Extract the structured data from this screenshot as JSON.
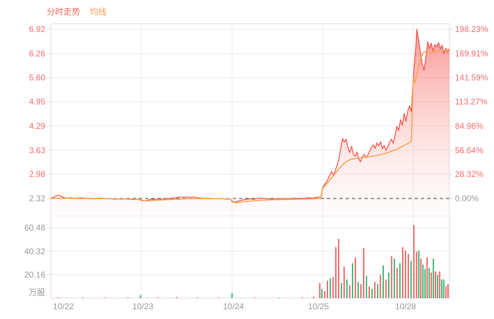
{
  "legend": {
    "items": [
      {
        "label": "分时走势",
        "color": "#f5695c"
      },
      {
        "label": "均线",
        "color": "#fb9c52"
      }
    ]
  },
  "chart_data": {
    "type": "line",
    "title": "分时走势图 (intraday multi-day stock chart)",
    "panels": [
      "price",
      "volume"
    ],
    "x_axis": {
      "labels": [
        "10/22",
        "10/23",
        "10/24",
        "10/25",
        "10/28"
      ],
      "days_visible": 4.4
    },
    "price_axis": {
      "ticks": [
        6.92,
        6.26,
        5.6,
        4.95,
        4.29,
        3.63,
        2.98
      ],
      "baseline": 2.32,
      "baseline_label": "2.32",
      "label_color": "#f56c6c",
      "muted_color": "#999999"
    },
    "pct_axis": {
      "ticks": [
        "198.23%",
        "169.91%",
        "141.59%",
        "113.27%",
        "84.96%",
        "56.64%",
        "28.32%"
      ],
      "baseline_label": "0.00%",
      "label_color": "#f56c6c",
      "muted_color": "#999999"
    },
    "volume_axis": {
      "ticks": [
        60.48,
        40.32,
        20.16
      ],
      "unit": "万股",
      "label_color": "#999999"
    },
    "grid_color": "#ececec",
    "frame_color": "#dcdcdc",
    "baseline_dash_color": "#3c3c3c",
    "area_gradient": [
      "rgba(245,75,70,0.60)",
      "rgba(248,135,128,0.33)",
      "rgba(252,228,226,0.12)"
    ],
    "series": [
      {
        "name": "分时走势",
        "color": "#f6544e",
        "width": 1.3,
        "points": [
          [
            0.0,
            2.33
          ],
          [
            0.03,
            2.35
          ],
          [
            0.06,
            2.39
          ],
          [
            0.09,
            2.41
          ],
          [
            0.12,
            2.37
          ],
          [
            0.15,
            2.34
          ],
          [
            0.18,
            2.33
          ],
          [
            0.22,
            2.34
          ],
          [
            0.26,
            2.32
          ],
          [
            0.3,
            2.33
          ],
          [
            0.34,
            2.34
          ],
          [
            0.38,
            2.32
          ],
          [
            0.42,
            2.33
          ],
          [
            0.46,
            2.31
          ],
          [
            0.5,
            2.32
          ],
          [
            0.54,
            2.33
          ],
          [
            0.58,
            2.32
          ],
          [
            0.62,
            2.31
          ],
          [
            0.66,
            2.32
          ],
          [
            0.7,
            2.3
          ],
          [
            0.74,
            2.31
          ],
          [
            0.78,
            2.3
          ],
          [
            0.82,
            2.31
          ],
          [
            0.86,
            2.3
          ],
          [
            0.9,
            2.29
          ],
          [
            0.94,
            2.3
          ],
          [
            0.98,
            2.29
          ],
          [
            1.0,
            2.28
          ],
          [
            1.03,
            2.25
          ],
          [
            1.06,
            2.27
          ],
          [
            1.09,
            2.29
          ],
          [
            1.12,
            2.3
          ],
          [
            1.15,
            2.29
          ],
          [
            1.18,
            2.31
          ],
          [
            1.22,
            2.3
          ],
          [
            1.26,
            2.31
          ],
          [
            1.3,
            2.32
          ],
          [
            1.34,
            2.33
          ],
          [
            1.38,
            2.34
          ],
          [
            1.42,
            2.36
          ],
          [
            1.46,
            2.35
          ],
          [
            1.5,
            2.36
          ],
          [
            1.54,
            2.35
          ],
          [
            1.58,
            2.36
          ],
          [
            1.62,
            2.34
          ],
          [
            1.66,
            2.33
          ],
          [
            1.7,
            2.32
          ],
          [
            1.74,
            2.33
          ],
          [
            1.78,
            2.31
          ],
          [
            1.82,
            2.32
          ],
          [
            1.86,
            2.31
          ],
          [
            1.9,
            2.32
          ],
          [
            1.94,
            2.3
          ],
          [
            1.98,
            2.31
          ],
          [
            2.0,
            2.26
          ],
          [
            2.02,
            2.22
          ],
          [
            2.05,
            2.24
          ],
          [
            2.08,
            2.26
          ],
          [
            2.12,
            2.28
          ],
          [
            2.16,
            2.3
          ],
          [
            2.2,
            2.31
          ],
          [
            2.24,
            2.3
          ],
          [
            2.28,
            2.32
          ],
          [
            2.32,
            2.33
          ],
          [
            2.36,
            2.32
          ],
          [
            2.4,
            2.31
          ],
          [
            2.44,
            2.3
          ],
          [
            2.48,
            2.31
          ],
          [
            2.52,
            2.32
          ],
          [
            2.56,
            2.31
          ],
          [
            2.6,
            2.32
          ],
          [
            2.64,
            2.31
          ],
          [
            2.68,
            2.33
          ],
          [
            2.72,
            2.32
          ],
          [
            2.76,
            2.33
          ],
          [
            2.8,
            2.32
          ],
          [
            2.84,
            2.34
          ],
          [
            2.88,
            2.33
          ],
          [
            2.92,
            2.34
          ],
          [
            2.96,
            2.36
          ],
          [
            2.98,
            2.34
          ],
          [
            3.0,
            2.62
          ],
          [
            3.02,
            2.7
          ],
          [
            3.04,
            2.76
          ],
          [
            3.06,
            2.85
          ],
          [
            3.08,
            2.96
          ],
          [
            3.1,
            3.05
          ],
          [
            3.12,
            2.94
          ],
          [
            3.14,
            3.08
          ],
          [
            3.16,
            3.22
          ],
          [
            3.18,
            3.4
          ],
          [
            3.2,
            3.68
          ],
          [
            3.22,
            3.95
          ],
          [
            3.24,
            3.85
          ],
          [
            3.26,
            3.93
          ],
          [
            3.28,
            3.7
          ],
          [
            3.3,
            3.57
          ],
          [
            3.32,
            3.74
          ],
          [
            3.34,
            3.52
          ],
          [
            3.36,
            3.47
          ],
          [
            3.38,
            3.58
          ],
          [
            3.4,
            3.39
          ],
          [
            3.42,
            3.32
          ],
          [
            3.44,
            3.46
          ],
          [
            3.46,
            3.52
          ],
          [
            3.48,
            3.43
          ],
          [
            3.5,
            3.5
          ],
          [
            3.52,
            3.61
          ],
          [
            3.54,
            3.7
          ],
          [
            3.56,
            3.78
          ],
          [
            3.58,
            3.68
          ],
          [
            3.6,
            3.83
          ],
          [
            3.62,
            3.75
          ],
          [
            3.64,
            3.86
          ],
          [
            3.66,
            3.67
          ],
          [
            3.68,
            3.76
          ],
          [
            3.7,
            3.63
          ],
          [
            3.72,
            3.72
          ],
          [
            3.74,
            3.85
          ],
          [
            3.76,
            3.93
          ],
          [
            3.78,
            3.82
          ],
          [
            3.8,
            4.04
          ],
          [
            3.82,
            4.28
          ],
          [
            3.84,
            4.17
          ],
          [
            3.86,
            4.46
          ],
          [
            3.88,
            4.31
          ],
          [
            3.9,
            4.63
          ],
          [
            3.92,
            4.42
          ],
          [
            3.94,
            4.7
          ],
          [
            3.96,
            4.84
          ],
          [
            3.98,
            4.68
          ],
          [
            4.0,
            5.55
          ],
          [
            4.01,
            5.9
          ],
          [
            4.03,
            6.45
          ],
          [
            4.04,
            6.92
          ],
          [
            4.06,
            6.62
          ],
          [
            4.08,
            6.28
          ],
          [
            4.1,
            5.98
          ],
          [
            4.12,
            5.8
          ],
          [
            4.14,
            6.15
          ],
          [
            4.16,
            6.58
          ],
          [
            4.18,
            6.4
          ],
          [
            4.2,
            6.54
          ],
          [
            4.22,
            6.33
          ],
          [
            4.24,
            6.5
          ],
          [
            4.26,
            6.44
          ],
          [
            4.28,
            6.56
          ],
          [
            4.3,
            6.38
          ],
          [
            4.32,
            6.49
          ],
          [
            4.34,
            6.26
          ],
          [
            4.36,
            6.4
          ],
          [
            4.38,
            6.3
          ],
          [
            4.4,
            6.35
          ]
        ]
      },
      {
        "name": "均线",
        "color": "#faa14b",
        "width": 1.5,
        "points": [
          [
            0.0,
            2.32
          ],
          [
            0.1,
            2.33
          ],
          [
            0.3,
            2.32
          ],
          [
            0.5,
            2.32
          ],
          [
            0.7,
            2.31
          ],
          [
            0.98,
            2.3
          ],
          [
            1.0,
            2.26
          ],
          [
            1.06,
            2.26
          ],
          [
            1.15,
            2.27
          ],
          [
            1.3,
            2.29
          ],
          [
            1.5,
            2.31
          ],
          [
            1.7,
            2.32
          ],
          [
            1.98,
            2.31
          ],
          [
            2.0,
            2.23
          ],
          [
            2.04,
            2.2
          ],
          [
            2.12,
            2.23
          ],
          [
            2.3,
            2.27
          ],
          [
            2.5,
            2.29
          ],
          [
            2.7,
            2.3
          ],
          [
            2.9,
            2.31
          ],
          [
            2.98,
            2.32
          ],
          [
            3.0,
            2.6
          ],
          [
            3.04,
            2.7
          ],
          [
            3.08,
            2.82
          ],
          [
            3.12,
            2.94
          ],
          [
            3.16,
            3.06
          ],
          [
            3.2,
            3.18
          ],
          [
            3.24,
            3.28
          ],
          [
            3.28,
            3.35
          ],
          [
            3.32,
            3.39
          ],
          [
            3.4,
            3.42
          ],
          [
            3.5,
            3.45
          ],
          [
            3.6,
            3.49
          ],
          [
            3.7,
            3.55
          ],
          [
            3.8,
            3.64
          ],
          [
            3.9,
            3.76
          ],
          [
            3.98,
            3.87
          ],
          [
            4.0,
            5.6
          ],
          [
            4.02,
            5.48
          ],
          [
            4.05,
            5.8
          ],
          [
            4.08,
            6.1
          ],
          [
            4.11,
            6.28
          ],
          [
            4.15,
            6.33
          ],
          [
            4.2,
            6.3
          ],
          [
            4.25,
            6.32
          ],
          [
            4.3,
            6.33
          ],
          [
            4.35,
            6.34
          ],
          [
            4.4,
            6.38
          ]
        ]
      }
    ],
    "volume_bars": {
      "up_color": "#f56c6c",
      "down_color": "#45ba7e",
      "bars": [
        [
          0.08,
          0.4,
          "u"
        ],
        [
          0.35,
          0.3,
          "d"
        ],
        [
          0.6,
          0.3,
          "u"
        ],
        [
          0.85,
          0.4,
          "d"
        ],
        [
          0.99,
          2.6,
          "d"
        ],
        [
          1.18,
          0.5,
          "u"
        ],
        [
          1.39,
          0.9,
          "u"
        ],
        [
          1.62,
          0.4,
          "d"
        ],
        [
          1.85,
          0.3,
          "u"
        ],
        [
          2.0,
          4.3,
          "d"
        ],
        [
          2.25,
          0.5,
          "u"
        ],
        [
          2.52,
          0.6,
          "d"
        ],
        [
          2.77,
          0.7,
          "u"
        ],
        [
          2.9,
          1.2,
          "u"
        ],
        [
          2.969,
          13,
          "u"
        ],
        [
          2.992,
          8,
          "d"
        ],
        [
          3.023,
          6,
          "u"
        ],
        [
          3.054,
          15,
          "u"
        ],
        [
          3.085,
          17,
          "d"
        ],
        [
          3.115,
          18,
          "u"
        ],
        [
          3.146,
          44,
          "u"
        ],
        [
          3.177,
          51,
          "u"
        ],
        [
          3.208,
          13,
          "d"
        ],
        [
          3.238,
          27,
          "u"
        ],
        [
          3.269,
          16,
          "d"
        ],
        [
          3.3,
          11,
          "u"
        ],
        [
          3.331,
          30,
          "d"
        ],
        [
          3.362,
          35,
          "u"
        ],
        [
          3.392,
          14,
          "d"
        ],
        [
          3.423,
          12,
          "u"
        ],
        [
          3.454,
          43,
          "u"
        ],
        [
          3.485,
          19,
          "d"
        ],
        [
          3.515,
          10,
          "u"
        ],
        [
          3.546,
          8,
          "d"
        ],
        [
          3.577,
          14,
          "u"
        ],
        [
          3.608,
          12,
          "d"
        ],
        [
          3.638,
          20,
          "u"
        ],
        [
          3.669,
          28,
          "d"
        ],
        [
          3.7,
          16,
          "u"
        ],
        [
          3.731,
          22,
          "d"
        ],
        [
          3.762,
          36,
          "u"
        ],
        [
          3.792,
          34,
          "d"
        ],
        [
          3.823,
          26,
          "u"
        ],
        [
          3.854,
          30,
          "d"
        ],
        [
          3.885,
          44,
          "u"
        ],
        [
          3.915,
          41,
          "u"
        ],
        [
          3.946,
          38,
          "u"
        ],
        [
          3.977,
          32,
          "d"
        ],
        [
          4.008,
          63,
          "u"
        ],
        [
          4.038,
          40,
          "u"
        ],
        [
          4.062,
          41,
          "d"
        ],
        [
          4.085,
          34,
          "u"
        ],
        [
          4.108,
          29,
          "d"
        ],
        [
          4.131,
          25,
          "d"
        ],
        [
          4.154,
          35,
          "u"
        ],
        [
          4.177,
          26,
          "d"
        ],
        [
          4.2,
          22,
          "u"
        ],
        [
          4.223,
          34,
          "d"
        ],
        [
          4.246,
          23,
          "u"
        ],
        [
          4.269,
          20,
          "d"
        ],
        [
          4.292,
          23,
          "u"
        ],
        [
          4.315,
          16,
          "d"
        ],
        [
          4.338,
          16,
          "d"
        ],
        [
          4.362,
          10,
          "u"
        ],
        [
          4.385,
          12,
          "u"
        ]
      ]
    }
  }
}
